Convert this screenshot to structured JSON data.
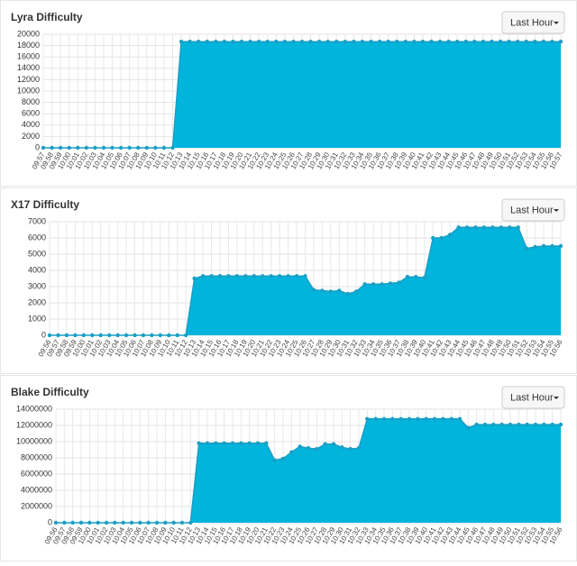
{
  "chart_data": [
    {
      "type": "area",
      "title": "Lyra Difficulty",
      "range_button": "Last Hour",
      "color": "#00b4dc",
      "grid": true,
      "categories": [
        "09:57",
        "09:58",
        "09:59",
        "10:00",
        "10:01",
        "10:02",
        "10:03",
        "10:04",
        "10:05",
        "10:06",
        "10:07",
        "10:08",
        "10:09",
        "10:10",
        "10:11",
        "10:12",
        "10:13",
        "10:14",
        "10:15",
        "10:16",
        "10:17",
        "10:18",
        "10:19",
        "10:20",
        "10:21",
        "10:22",
        "10:23",
        "10:24",
        "10:25",
        "10:26",
        "10:27",
        "10:28",
        "10:29",
        "10:30",
        "10:31",
        "10:32",
        "10:33",
        "10:34",
        "10:35",
        "10:36",
        "10:37",
        "10:38",
        "10:39",
        "10:40",
        "10:41",
        "10:42",
        "10:43",
        "10:44",
        "10:45",
        "10:46",
        "10:47",
        "10:48",
        "10:49",
        "10:50",
        "10:51",
        "10:52",
        "10:53",
        "10:54",
        "10:55",
        "10:56",
        "10:57"
      ],
      "values": [
        0,
        0,
        0,
        0,
        0,
        0,
        0,
        0,
        0,
        0,
        0,
        0,
        0,
        0,
        0,
        0,
        18700,
        18700,
        18700,
        18700,
        18700,
        18700,
        18700,
        18700,
        18700,
        18700,
        18700,
        18700,
        18700,
        18700,
        18700,
        18700,
        18700,
        18700,
        18700,
        18700,
        18700,
        18700,
        18700,
        18700,
        18700,
        18700,
        18700,
        18700,
        18700,
        18700,
        18700,
        18700,
        18700,
        18700,
        18700,
        18700,
        18700,
        18700,
        18700,
        18700,
        18700,
        18700,
        18700,
        18700,
        18700
      ],
      "ylim": [
        0,
        20000
      ],
      "yticks": [
        0,
        2000,
        4000,
        6000,
        8000,
        10000,
        12000,
        14000,
        16000,
        18000,
        20000
      ]
    },
    {
      "type": "area",
      "title": "X17 Difficulty",
      "range_button": "Last Hour",
      "color": "#00b4dc",
      "grid": true,
      "categories": [
        "09:56",
        "09:57",
        "09:58",
        "09:59",
        "10:00",
        "10:01",
        "10:02",
        "10:03",
        "10:04",
        "10:05",
        "10:06",
        "10:07",
        "10:08",
        "10:09",
        "10:10",
        "10:11",
        "10:12",
        "10:13",
        "10:14",
        "10:15",
        "10:16",
        "10:17",
        "10:18",
        "10:19",
        "10:20",
        "10:21",
        "10:22",
        "10:23",
        "10:24",
        "10:25",
        "10:26",
        "10:27",
        "10:28",
        "10:29",
        "10:30",
        "10:31",
        "10:32",
        "10:33",
        "10:34",
        "10:35",
        "10:36",
        "10:37",
        "10:38",
        "10:39",
        "10:40",
        "10:41",
        "10:42",
        "10:43",
        "10:44",
        "10:45",
        "10:46",
        "10:47",
        "10:48",
        "10:49",
        "10:50",
        "10:51",
        "10:52",
        "10:53",
        "10:54",
        "10:55",
        "10:56"
      ],
      "values": [
        0,
        0,
        0,
        0,
        0,
        0,
        0,
        0,
        0,
        0,
        0,
        0,
        0,
        0,
        0,
        0,
        0,
        3500,
        3650,
        3650,
        3650,
        3650,
        3650,
        3650,
        3650,
        3650,
        3650,
        3650,
        3650,
        3650,
        3650,
        2800,
        2750,
        2700,
        2750,
        2550,
        2700,
        3150,
        3150,
        3150,
        3200,
        3250,
        3600,
        3600,
        3550,
        6000,
        6000,
        6200,
        6650,
        6650,
        6650,
        6650,
        6650,
        6650,
        6650,
        6650,
        5350,
        5450,
        5500,
        5500,
        5500
      ],
      "ylim": [
        0,
        7000
      ],
      "yticks": [
        0,
        1000,
        2000,
        3000,
        4000,
        5000,
        6000,
        7000
      ]
    },
    {
      "type": "area",
      "title": "Blake Difficulty",
      "range_button": "Last Hour",
      "color": "#00b4dc",
      "grid": true,
      "categories": [
        "09:56",
        "09:57",
        "09:58",
        "09:59",
        "10:00",
        "10:01",
        "10:02",
        "10:03",
        "10:04",
        "10:05",
        "10:06",
        "10:07",
        "10:08",
        "10:09",
        "10:10",
        "10:11",
        "10:12",
        "10:13",
        "10:14",
        "10:15",
        "10:16",
        "10:17",
        "10:18",
        "10:19",
        "10:20",
        "10:21",
        "10:22",
        "10:23",
        "10:24",
        "10:25",
        "10:26",
        "10:27",
        "10:28",
        "10:29",
        "10:30",
        "10:31",
        "10:32",
        "10:33",
        "10:34",
        "10:35",
        "10:36",
        "10:37",
        "10:38",
        "10:39",
        "10:40",
        "10:41",
        "10:42",
        "10:43",
        "10:44",
        "10:45",
        "10:46",
        "10:47",
        "10:48",
        "10:49",
        "10:50",
        "10:51",
        "10:52",
        "10:53",
        "10:54",
        "10:55",
        "10:56"
      ],
      "values": [
        0,
        0,
        0,
        0,
        0,
        0,
        0,
        0,
        0,
        0,
        0,
        0,
        0,
        0,
        0,
        0,
        0,
        9800000,
        9800000,
        9800000,
        9800000,
        9800000,
        9800000,
        9800000,
        9800000,
        9800000,
        7700000,
        7900000,
        8700000,
        9400000,
        9200000,
        9100000,
        9700000,
        9700000,
        9300000,
        9100000,
        9200000,
        12800000,
        12800000,
        12800000,
        12800000,
        12800000,
        12800000,
        12800000,
        12800000,
        12800000,
        12800000,
        12800000,
        12800000,
        11700000,
        12100000,
        12100000,
        12100000,
        12100000,
        12100000,
        12100000,
        12100000,
        12100000,
        12100000,
        12100000,
        12100000
      ],
      "ylim": [
        0,
        14000000
      ],
      "yticks": [
        0,
        2000000,
        4000000,
        6000000,
        8000000,
        10000000,
        12000000,
        14000000
      ]
    }
  ]
}
